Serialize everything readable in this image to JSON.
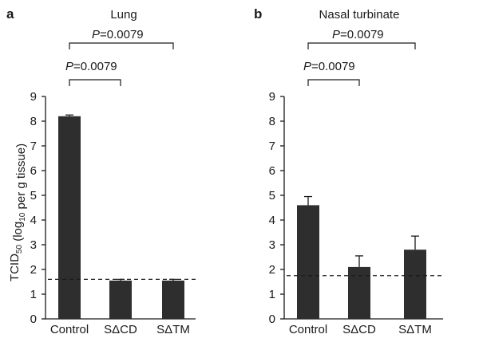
{
  "chart_data": [
    {
      "type": "bar",
      "panel": "a",
      "title": "Lung",
      "ylabel": "TCID50 (log10 per g tissue)",
      "ylim": [
        0,
        9
      ],
      "yticks": [
        "0",
        "1",
        "2",
        "3",
        "4",
        "5",
        "6",
        "7",
        "8",
        "9"
      ],
      "categories": [
        "Control",
        "SΔCD",
        "SΔTM"
      ],
      "values": [
        8.2,
        1.55,
        1.55
      ],
      "errors": [
        0.05,
        0.05,
        0.05
      ],
      "threshold": 1.6,
      "comparisons": [
        {
          "from": 0,
          "to": 1,
          "label": "P=0.0079"
        },
        {
          "from": 0,
          "to": 2,
          "label": "P=0.0079"
        }
      ]
    },
    {
      "type": "bar",
      "panel": "b",
      "title": "Nasal turbinate",
      "ylabel": "",
      "ylim": [
        0,
        9
      ],
      "yticks": [
        "0",
        "1",
        "2",
        "3",
        "4",
        "5",
        "6",
        "7",
        "8",
        "9"
      ],
      "categories": [
        "Control",
        "SΔCD",
        "SΔTM"
      ],
      "values": [
        4.6,
        2.1,
        2.8
      ],
      "errors": [
        0.35,
        0.45,
        0.55
      ],
      "threshold": 1.75,
      "comparisons": [
        {
          "from": 0,
          "to": 1,
          "label": "P=0.0079"
        },
        {
          "from": 0,
          "to": 2,
          "label": "P=0.0079"
        }
      ]
    }
  ],
  "colors": {
    "bar": "#2e2e2e",
    "text": "#1a1a1a"
  }
}
